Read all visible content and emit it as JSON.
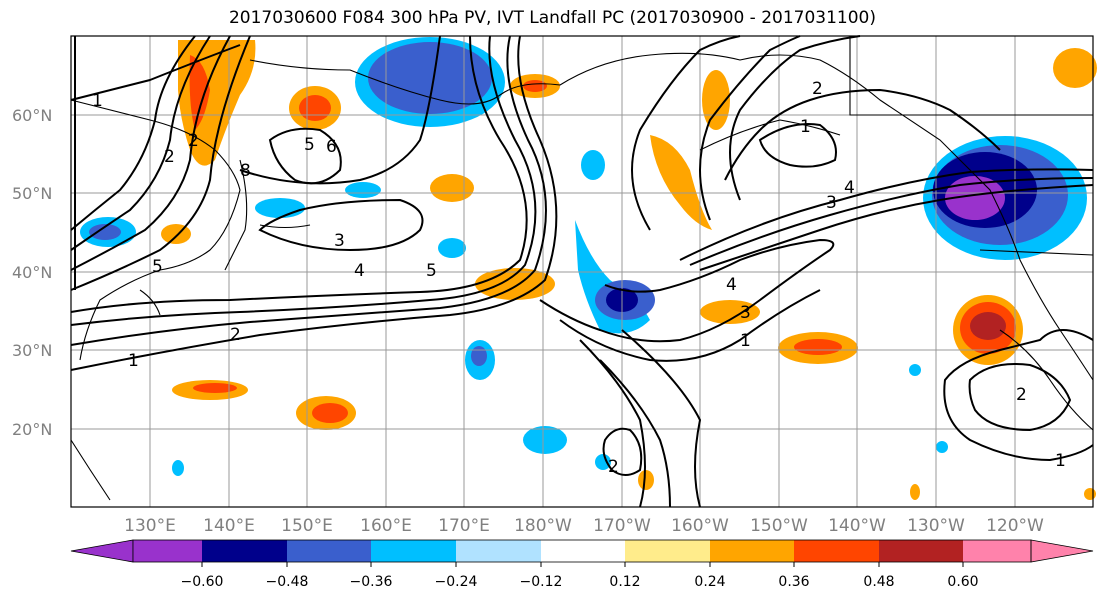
{
  "title": "2017030600 F084 300 hPa PV, IVT Landfall PC (2017030900 - 2017031100)",
  "lat_labels": [
    "60°N",
    "50°N",
    "40°N",
    "30°N",
    "20°N"
  ],
  "lon_labels": [
    "130°E",
    "140°E",
    "150°E",
    "160°E",
    "170°E",
    "180°W",
    "170°W",
    "160°W",
    "150°W",
    "140°W",
    "130°W",
    "120°W"
  ],
  "colorbar": {
    "ticks": [
      "−0.60",
      "−0.48",
      "−0.36",
      "−0.24",
      "−0.12",
      "0.12",
      "0.24",
      "0.36",
      "0.48",
      "0.60"
    ],
    "colors": [
      "#9932CC",
      "#00008B",
      "#3A5FCD",
      "#00BFFF",
      "#B0E2FF",
      "#FFFFFF",
      "#FFEC8B",
      "#FFA500",
      "#FF4500",
      "#B22222",
      "#FF82AB"
    ]
  },
  "contour_labels": {
    "west_1": "1",
    "west_2": "2",
    "west_5": "5",
    "sea_3": "3",
    "sea_4": "4",
    "sea_5": "5",
    "low_1": "1",
    "low_2": "2",
    "ne_1": "1",
    "ne_2": "2",
    "ne_3": "3",
    "ne_4": "4",
    "trough_3": "3",
    "trough_4": "4",
    "trough_1": "1",
    "sw_2": "2",
    "sw_1": "1",
    "cal_2": "2",
    "j_2": "2",
    "j_5": "5",
    "j_6": "6",
    "j_8": "8"
  }
}
